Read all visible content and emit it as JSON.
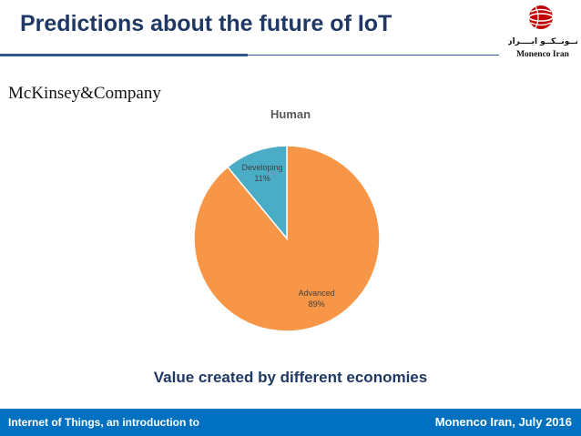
{
  "slide": {
    "title": "Predictions about the future of IoT",
    "source_brand": "McKinsey&Company",
    "caption": "Value created by different economies"
  },
  "logo": {
    "arabic_text": "مــونــكــو ايــــران",
    "latin_text": "Monenco Iran"
  },
  "footer": {
    "left_text": "Internet of Things, an introduction to",
    "right_text": "Monenco Iran, July 2016"
  },
  "chart_data": {
    "type": "pie",
    "title": "Human",
    "slices": [
      {
        "label": "Advanced",
        "value": 89,
        "value_label": "89%",
        "color": "#f79646"
      },
      {
        "label": "Developing",
        "value": 11,
        "value_label": "11%",
        "color": "#4bacc6"
      }
    ]
  },
  "colors": {
    "title": "#1f3864",
    "footer_bg": "#0070c0",
    "logo_red": "#c00000"
  }
}
